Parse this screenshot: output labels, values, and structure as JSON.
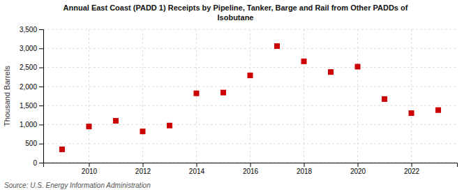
{
  "chart_data": {
    "type": "scatter",
    "title": "Annual East Coast (PADD 1) Receipts by Pipeline, Tanker, Barge and Rail from Other PADDs of\nIsobutane",
    "y_label": "Thousand Barrels",
    "annotations": [
      "Source: U.S. Energy Information Administration"
    ],
    "x": [
      2009,
      2010,
      2011,
      2012,
      2013,
      2014,
      2015,
      2016,
      2017,
      2018,
      2019,
      2020,
      2021,
      2022,
      2023
    ],
    "values": [
      350,
      950,
      1100,
      820,
      975,
      1820,
      1840,
      2290,
      3060,
      2660,
      2380,
      2520,
      1670,
      1300,
      1380
    ],
    "color": "#cc0000",
    "marker": "square",
    "xlim": [
      2008.3,
      2023.7
    ],
    "xticks": [
      2010,
      2012,
      2014,
      2016,
      2018,
      2020,
      2022
    ],
    "ylim": [
      0,
      3500
    ],
    "yticks": [
      0,
      500,
      {
        "value": 1000,
        "label": "1,000"
      },
      {
        "value": 1500,
        "label": "1,500"
      },
      {
        "value": 2000,
        "label": "2,000"
      },
      {
        "value": 2500,
        "label": "2,500"
      },
      {
        "value": 3000,
        "label": "3,000"
      },
      {
        "value": 3500,
        "label": "3,500"
      }
    ],
    "grid": true
  }
}
